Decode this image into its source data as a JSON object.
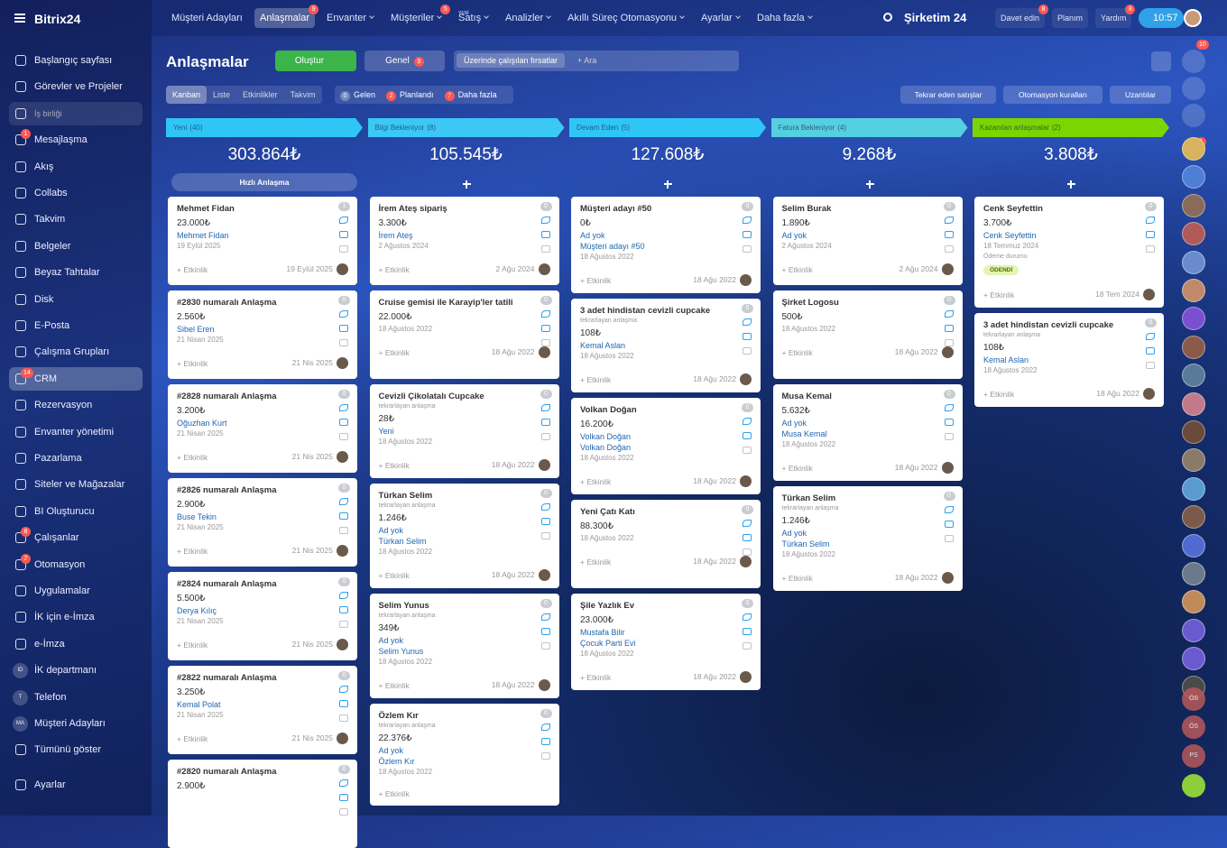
{
  "app": {
    "logo": "Bitrix24",
    "company": "Şirketim 24",
    "time": "10:57"
  },
  "topnav": {
    "items": [
      {
        "label": "Müşteri Adayları"
      },
      {
        "label": "Anlaşmalar",
        "badge": 9,
        "active": true
      },
      {
        "label": "Envanter"
      },
      {
        "label": "Müşteriler",
        "badge": 5
      },
      {
        "label": "Satış",
        "tag": "YENİ"
      },
      {
        "label": "Analizler"
      },
      {
        "label": "Akıllı Süreç Otomasyonu"
      },
      {
        "label": "Ayarlar"
      },
      {
        "label": "Daha fazla"
      }
    ],
    "right": [
      {
        "label": "Davet edin",
        "badge": 8
      },
      {
        "label": "Planım"
      },
      {
        "label": "Yardım",
        "badge": 8
      }
    ]
  },
  "sidebar": {
    "top_items": [
      {
        "label": "Başlangıç sayfası"
      },
      {
        "label": "Görevler ve Projeler"
      }
    ],
    "section": "İş birliği",
    "items": [
      {
        "label": "Mesajlaşma",
        "badge": 1
      },
      {
        "label": "Akış"
      },
      {
        "label": "Collabs"
      },
      {
        "label": "Takvim"
      },
      {
        "label": "Belgeler"
      },
      {
        "label": "Beyaz Tahtalar"
      },
      {
        "label": "Disk"
      },
      {
        "label": "E-Posta"
      },
      {
        "label": "Çalışma Grupları"
      },
      {
        "label": "CRM",
        "badge": 14,
        "active": true
      },
      {
        "label": "Rezervasyon"
      },
      {
        "label": "Envanter yönetimi"
      },
      {
        "label": "Pazarlama"
      },
      {
        "label": "Siteler ve Mağazalar"
      },
      {
        "label": "BI Oluşturucu"
      },
      {
        "label": "Çalışanlar",
        "badge": 8
      },
      {
        "label": "Otomasyon",
        "badge": 2
      },
      {
        "label": "Uygulamalar"
      },
      {
        "label": "İK için e-İmza"
      },
      {
        "label": "e-İmza"
      },
      {
        "label": "İK departmanı",
        "initials": "ID"
      },
      {
        "label": "Telefon",
        "initials": "T"
      },
      {
        "label": "Müşteri Adayları",
        "initials": "MA"
      },
      {
        "label": "Tümünü göster"
      }
    ],
    "settings": "Ayarlar"
  },
  "header": {
    "title": "Anlaşmalar",
    "create": "Oluştur",
    "filter": "Genel",
    "filter_badge": 9,
    "search_chip": "Üzerinde çalışılan fırsatlar",
    "search_placeholder": "+ Ara"
  },
  "views": {
    "tabs": [
      "Kanban",
      "Liste",
      "Etkinlikler",
      "Takvim"
    ],
    "counters": [
      {
        "count": 0,
        "label": "Gelen"
      },
      {
        "count": 2,
        "label": "Planlandı"
      },
      {
        "count": 7,
        "label": "Daha fazla"
      }
    ],
    "buttons": [
      "Tekrar eden satışlar",
      "Otomasyon kuralları",
      "Uzantılar"
    ]
  },
  "labels": {
    "add_activity": "+ Etkinlik",
    "quick_deal": "Hızlı Anlaşma"
  },
  "columns": [
    {
      "name": "Yeni",
      "count": "(40)",
      "total": "303.864₺",
      "color": "#2fc6f6",
      "cards": [
        {
          "title": "Mehmet Fidan",
          "amount": "23.000₺",
          "links": [
            "Mehmet Fidan"
          ],
          "date": "19 Eylül 2025",
          "footer_date": "19 Eylül 2025",
          "counter": 1
        },
        {
          "title": "#2830 numaralı Anlaşma",
          "amount": "2.560₺",
          "links": [
            "Sibel Eren"
          ],
          "date": "21 Nisan 2025",
          "footer_date": "21 Nis 2025",
          "counter": 0
        },
        {
          "title": "#2828 numaralı Anlaşma",
          "amount": "3.200₺",
          "links": [
            "Oğuzhan Kurt"
          ],
          "date": "21 Nisan 2025",
          "footer_date": "21 Nis 2025",
          "counter": 0
        },
        {
          "title": "#2826 numaralı Anlaşma",
          "amount": "2.900₺",
          "links": [
            "Buse Tekin"
          ],
          "date": "21 Nisan 2025",
          "footer_date": "21 Nis 2025",
          "counter": 0
        },
        {
          "title": "#2824 numaralı Anlaşma",
          "amount": "5.500₺",
          "links": [
            "Derya Kılıç"
          ],
          "date": "21 Nisan 2025",
          "footer_date": "21 Nis 2025",
          "counter": 0
        },
        {
          "title": "#2822 numaralı Anlaşma",
          "amount": "3.250₺",
          "links": [
            "Kemal Polat"
          ],
          "date": "21 Nisan 2025",
          "footer_date": "21 Nis 2025",
          "counter": 0
        },
        {
          "title": "#2820 numaralı Anlaşma",
          "amount": "2.900₺",
          "counter": 0
        }
      ]
    },
    {
      "name": "Bilgi Bekleniyor",
      "count": "(8)",
      "total": "105.545₺",
      "color": "#3bc8f5",
      "cards": [
        {
          "title": "İrem Ateş sipariş",
          "amount": "3.300₺",
          "links": [
            "İrem Ateş"
          ],
          "date": "2 Ağustos 2024",
          "footer_date": "2 Ağu 2024",
          "counter": 0
        },
        {
          "title": "Cruise gemisi ile Karayip'ler tatili",
          "amount": "22.000₺",
          "date": "18 Ağustos 2022",
          "footer_date": "18 Ağu 2022",
          "counter": 0
        },
        {
          "title": "Cevizli Çikolatalı Cupcake",
          "subtitle": "tekrarlayan anlaşma",
          "amount": "28₺",
          "links": [
            "Yeni"
          ],
          "date": "18 Ağustos 2022",
          "footer_date": "18 Ağu 2022",
          "counter": 0
        },
        {
          "title": "Türkan Selim",
          "subtitle": "tekrarlayan anlaşma",
          "amount": "1.246₺",
          "links": [
            "Ad yok",
            "Türkan Selim"
          ],
          "date": "18 Ağustos 2022",
          "footer_date": "18 Ağu 2022",
          "counter": 0
        },
        {
          "title": "Selim Yunus",
          "subtitle": "tekrarlayan anlaşma",
          "amount": "349₺",
          "links": [
            "Ad yok",
            "Selim Yunus"
          ],
          "date": "18 Ağustos 2022",
          "footer_date": "18 Ağu 2022",
          "counter": 0
        },
        {
          "title": "Özlem Kır",
          "subtitle": "tekrarlayan anlaşma",
          "amount": "22.376₺",
          "links": [
            "Ad yok",
            "Özlem Kır"
          ],
          "date": "18 Ağustos 2022",
          "counter": 0
        }
      ]
    },
    {
      "name": "Devam Eden",
      "count": "(5)",
      "total": "127.608₺",
      "color": "#2fc6f6",
      "cards": [
        {
          "title": "Müşteri adayı #50",
          "amount": "0₺",
          "links": [
            "Ad yok",
            "Müşteri adayı #50"
          ],
          "date": "18 Ağustos 2022",
          "footer_date": "18 Ağu 2022",
          "counter": 0
        },
        {
          "title": "3 adet hindistan cevizli cupcake",
          "subtitle": "tekrarlayan anlaşma",
          "amount": "108₺",
          "links": [
            "Kemal Aslan"
          ],
          "date": "18 Ağustos 2022",
          "footer_date": "18 Ağu 2022",
          "counter": 0
        },
        {
          "title": "Volkan Doğan",
          "amount": "16.200₺",
          "links": [
            "Volkan Doğan",
            "Volkan Doğan"
          ],
          "date": "18 Ağustos 2022",
          "footer_date": "18 Ağu 2022",
          "counter": 0
        },
        {
          "title": "Yeni Çatı Katı",
          "amount": "88.300₺",
          "date": "18 Ağustos 2022",
          "footer_date": "18 Ağu 2022",
          "counter": 0
        },
        {
          "title": "Şile Yazlık Ev",
          "amount": "23.000₺",
          "links": [
            "Mustafa Bilir",
            "Çocuk Parti Evi"
          ],
          "date": "18 Ağustos 2022",
          "footer_date": "18 Ağu 2022",
          "counter": 0
        }
      ]
    },
    {
      "name": "Fatura Bekleniyor",
      "count": "(4)",
      "total": "9.268₺",
      "color": "#55d0e0",
      "cards": [
        {
          "title": "Selim Burak",
          "amount": "1.890₺",
          "links": [
            "Ad yok"
          ],
          "date": "2 Ağustos 2024",
          "footer_date": "2 Ağu 2024",
          "counter": 0
        },
        {
          "title": "Şirket Logosu",
          "amount": "500₺",
          "date": "18 Ağustos 2022",
          "footer_date": "18 Ağu 2022",
          "counter": 0
        },
        {
          "title": "Musa Kemal",
          "amount": "5.632₺",
          "links": [
            "Ad yok",
            "Musa Kemal"
          ],
          "date": "18 Ağustos 2022",
          "footer_date": "18 Ağu 2022",
          "counter": 0
        },
        {
          "title": "Türkan Selim",
          "subtitle": "tekrarlayan anlaşma",
          "amount": "1.246₺",
          "links": [
            "Ad yok",
            "Türkan Selim"
          ],
          "date": "18 Ağustos 2022",
          "footer_date": "18 Ağu 2022",
          "counter": 0
        }
      ]
    },
    {
      "name": "Kazanılan anlaşmalar",
      "count": "(2)",
      "total": "3.808₺",
      "color": "#7bd500",
      "cards": [
        {
          "title": "Cenk Seyfettin",
          "amount": "3.700₺",
          "links": [
            "Cenk Seyfettin"
          ],
          "date": "18 Temmuz 2024",
          "field": "Ödeme durumu",
          "tag": "ÖDENDİ",
          "footer_date": "18 Tem 2024",
          "counter": 0
        },
        {
          "title": "3 adet hindistan cevizli cupcake",
          "subtitle": "tekrarlayan anlaşma",
          "amount": "108₺",
          "links": [
            "Kemal Aslan"
          ],
          "date": "18 Ağustos 2022",
          "footer_date": "18 Ağu 2022",
          "counter": 0
        }
      ]
    }
  ],
  "rail": {
    "bell_badge": 10,
    "avatar_badge": 1,
    "initials": [
      "ÖS",
      "ÖS",
      "PS"
    ]
  }
}
